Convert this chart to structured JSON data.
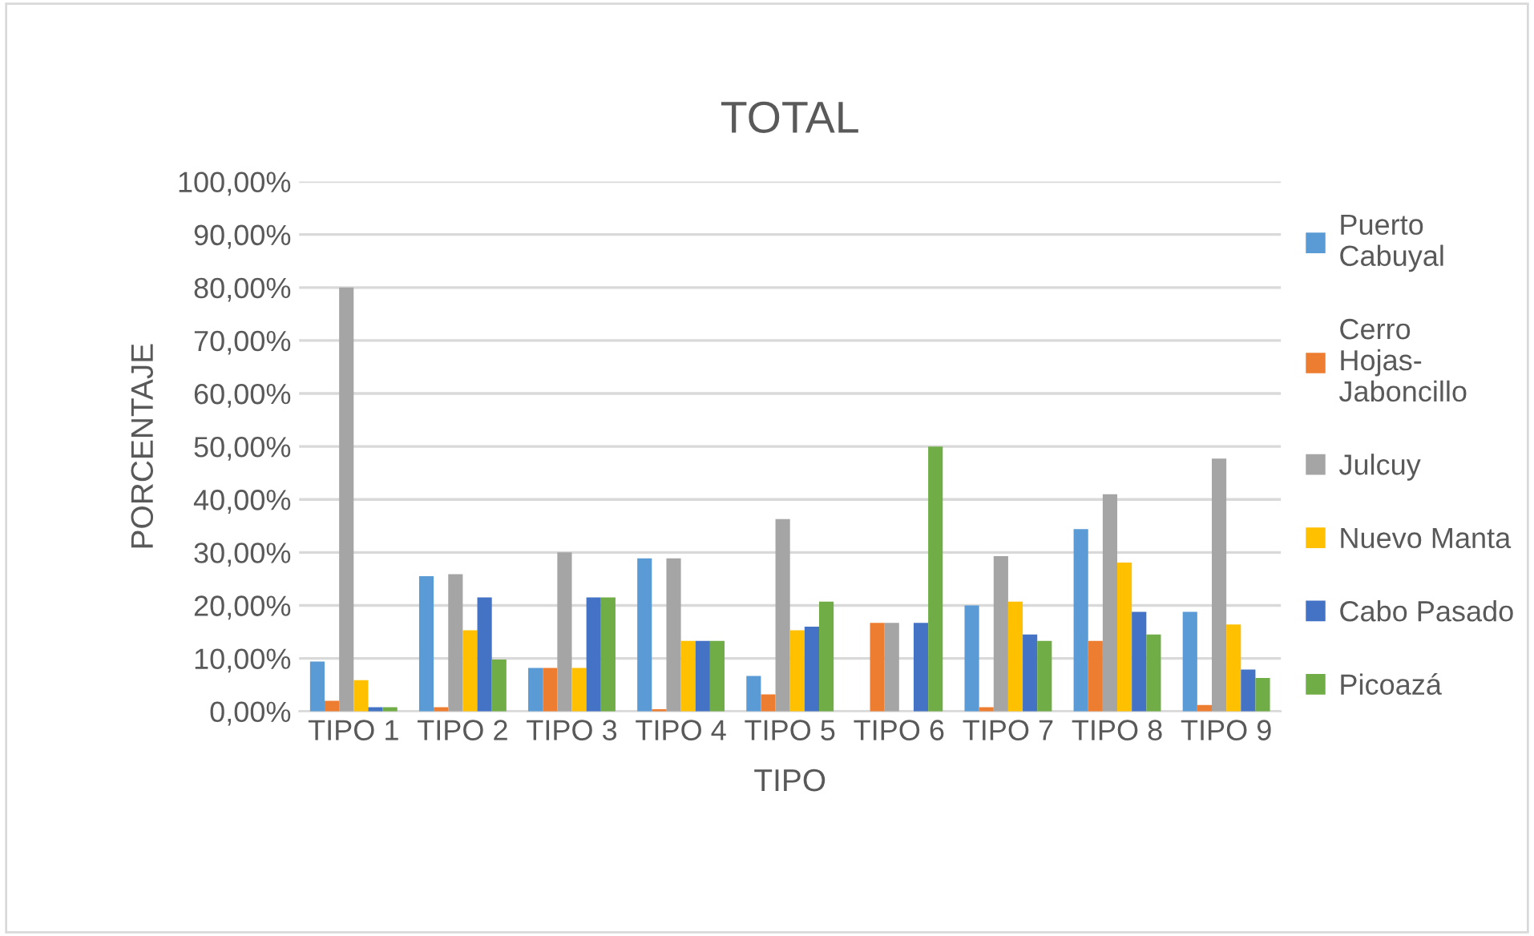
{
  "chart_data": {
    "type": "bar",
    "title": "TOTAL",
    "xlabel": "TIPO",
    "ylabel": "PORCENTAJE",
    "categories": [
      "TIPO 1",
      "TIPO 2",
      "TIPO 3",
      "TIPO 4",
      "TIPO 5",
      "TIPO 6",
      "TIPO 7",
      "TIPO 8",
      "TIPO 9"
    ],
    "series": [
      {
        "name": "Puerto Cabuyal",
        "color": "#5b9bd5",
        "values": [
          9.4,
          25.5,
          8.2,
          28.9,
          6.7,
          0,
          20.0,
          34.4,
          18.8
        ]
      },
      {
        "name": "Cerro Hojas-Jaboncillo",
        "color": "#ed7d31",
        "values": [
          2.0,
          0.8,
          8.2,
          0.4,
          3.2,
          16.7,
          0.8,
          13.3,
          1.2
        ]
      },
      {
        "name": "Julcuy",
        "color": "#a5a5a5",
        "values": [
          80.0,
          25.9,
          30.0,
          28.9,
          36.3,
          16.7,
          29.3,
          41.0,
          47.7
        ]
      },
      {
        "name": "Nuevo Manta",
        "color": "#ffc000",
        "values": [
          5.9,
          15.3,
          8.2,
          13.3,
          15.3,
          0,
          20.7,
          28.1,
          16.4
        ]
      },
      {
        "name": "Cabo Pasado",
        "color": "#4472c4",
        "values": [
          0.8,
          21.5,
          21.5,
          13.3,
          16.0,
          16.7,
          14.5,
          18.8,
          7.9
        ]
      },
      {
        "name": "Picoazá",
        "color": "#70ad47",
        "values": [
          0.8,
          9.8,
          21.5,
          13.3,
          20.7,
          50.0,
          13.3,
          14.5,
          6.3
        ]
      }
    ],
    "ylim": [
      0,
      100
    ],
    "yticks": [
      {
        "value": 0,
        "label": "0,00%"
      },
      {
        "value": 10,
        "label": "10,00%"
      },
      {
        "value": 20,
        "label": "20,00%"
      },
      {
        "value": 30,
        "label": "30,00%"
      },
      {
        "value": 40,
        "label": "40,00%"
      },
      {
        "value": 50,
        "label": "50,00%"
      },
      {
        "value": 60,
        "label": "60,00%"
      },
      {
        "value": 70,
        "label": "70,00%"
      },
      {
        "value": 80,
        "label": "80,00%"
      },
      {
        "value": 90,
        "label": "90,00%"
      },
      {
        "value": 100,
        "label": "100,00%"
      }
    ],
    "grid": "y",
    "legend": "right"
  }
}
